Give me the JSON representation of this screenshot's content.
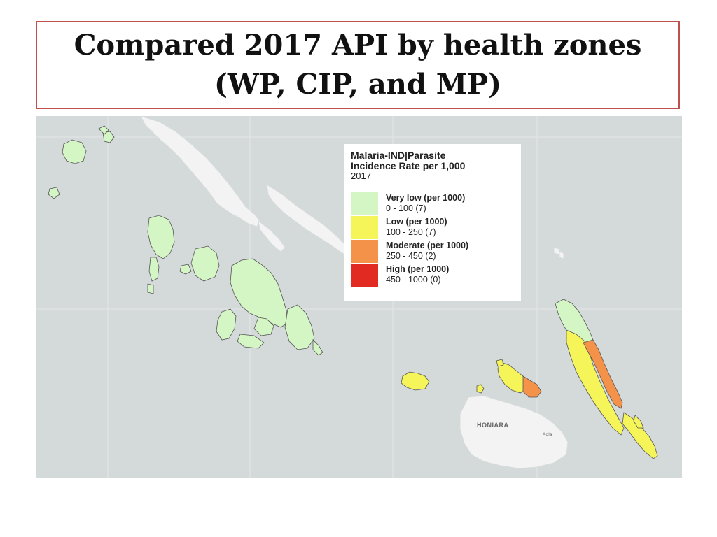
{
  "title": {
    "line1": "Compared 2017 API by health zones",
    "line2": "(WP, CIP, and MP)"
  },
  "legend": {
    "title_line1": "Malaria-IND|Parasite",
    "title_line2": "Incidence Rate per 1,000",
    "year": "2017",
    "items": [
      {
        "label": "Very low (per 1000)",
        "range": "0 - 100 (7)",
        "color": "#d4f5c4"
      },
      {
        "label": "Low (per 1000)",
        "range": "100 - 250 (7)",
        "color": "#f5f55a"
      },
      {
        "label": "Moderate (per 1000)",
        "range": "250 - 450 (2)",
        "color": "#f5924a"
      },
      {
        "label": "High (per 1000)",
        "range": "450 - 1000 (0)",
        "color": "#e02a22"
      }
    ]
  },
  "places": {
    "honiara": "HONIARA",
    "aola": "Aola"
  },
  "colors": {
    "sea": "#d4d9da",
    "land": "#f3f3f3",
    "very_low": "#d4f5c4",
    "low": "#f5f55a",
    "moderate": "#f5924a",
    "high": "#e02a22"
  }
}
